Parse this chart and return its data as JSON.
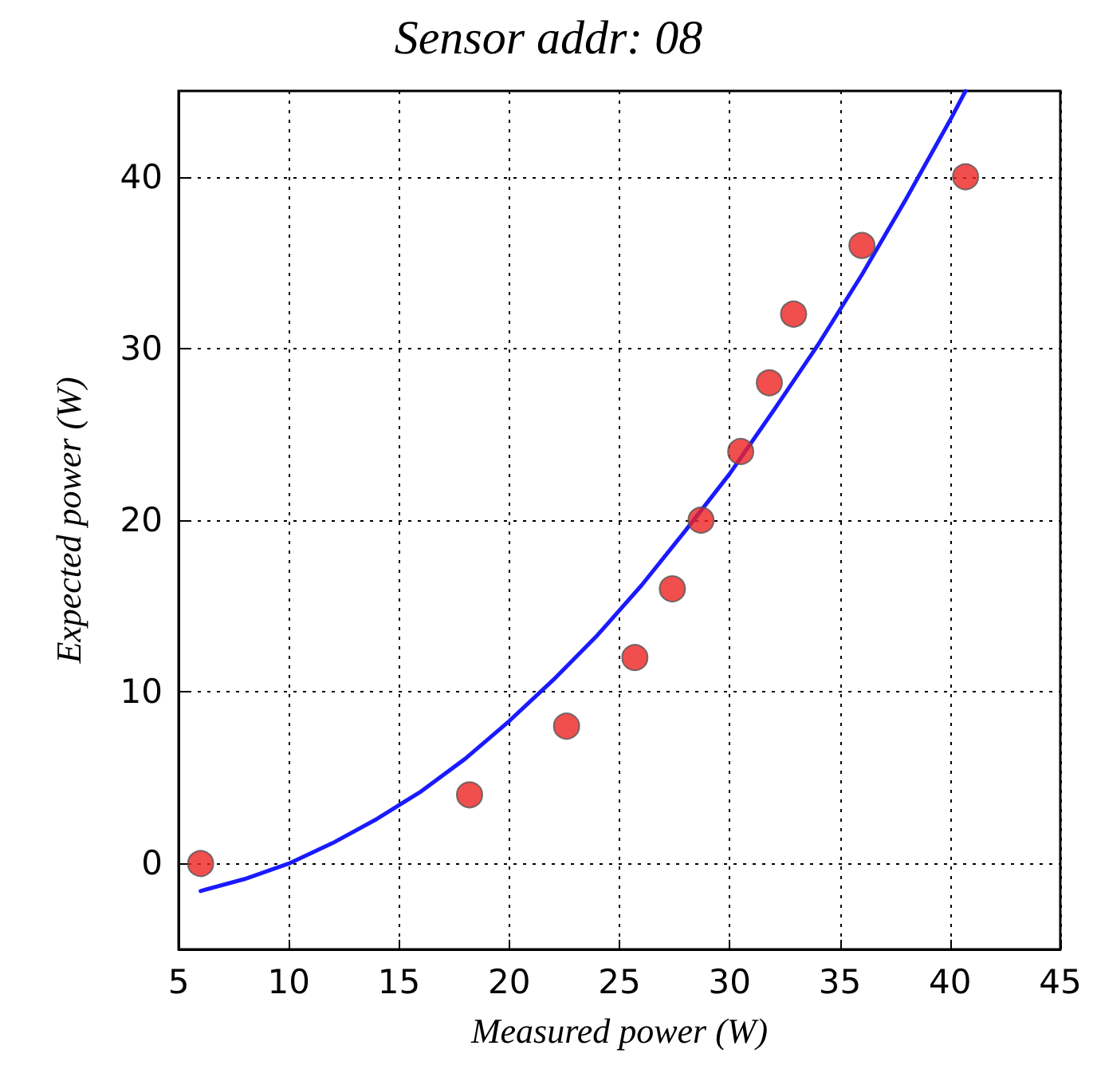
{
  "chart_data": {
    "type": "scatter",
    "title": "Sensor addr: 08",
    "xlabel": "Measured power (W)",
    "ylabel": "Expected power (W)",
    "xlim": [
      5,
      45
    ],
    "xticks": [
      5,
      10,
      15,
      20,
      25,
      30,
      35,
      40,
      45
    ],
    "ylim": [
      -5,
      45
    ],
    "yticks": [
      0,
      10,
      20,
      30,
      40
    ],
    "grid": true,
    "marker": "circle",
    "series": [
      {
        "color": "#ee2222",
        "x": [
          6,
          18.2,
          22.6,
          25.7,
          27.4,
          28.7,
          30.5,
          31.8,
          32.9,
          36,
          40.7
        ],
        "values": [
          0,
          4,
          8,
          12,
          16,
          20,
          24,
          28,
          32,
          36,
          40
        ]
      },
      {
        "type": "line",
        "color": "#1a1aff",
        "marker": "none",
        "line_style": "solid",
        "x": [
          6,
          8,
          10,
          12,
          14,
          16,
          18,
          20,
          22,
          24,
          26,
          28,
          30,
          32,
          34,
          36,
          38,
          40,
          40.7
        ],
        "values": [
          -1.6,
          -0.9,
          0,
          1.2,
          2.6,
          4.2,
          6.1,
          8.3,
          10.7,
          13.3,
          16.2,
          19.4,
          22.7,
          26.4,
          30.2,
          34.3,
          38.7,
          43.3,
          45
        ]
      }
    ]
  }
}
